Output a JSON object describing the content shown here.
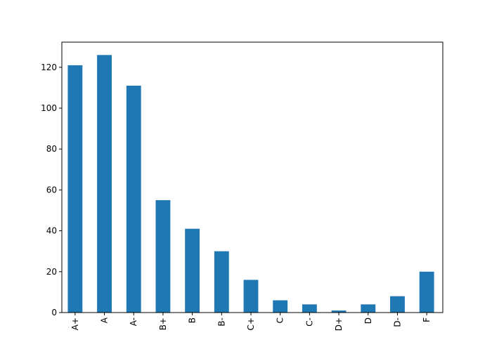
{
  "chart_data": {
    "type": "bar",
    "categories": [
      "A+",
      "A",
      "A-",
      "B+",
      "B",
      "B-",
      "C+",
      "C",
      "C-",
      "D+",
      "D",
      "D-",
      "F"
    ],
    "values": [
      121,
      126,
      111,
      55,
      41,
      30,
      16,
      6,
      4,
      1,
      4,
      8,
      20
    ],
    "title": "",
    "xlabel": "",
    "ylabel": "",
    "ylim": [
      0,
      132.3
    ],
    "yticks": [
      0,
      20,
      40,
      60,
      80,
      100,
      120
    ],
    "grid": false,
    "legend": "none",
    "bar_color": "#1f77b4"
  }
}
